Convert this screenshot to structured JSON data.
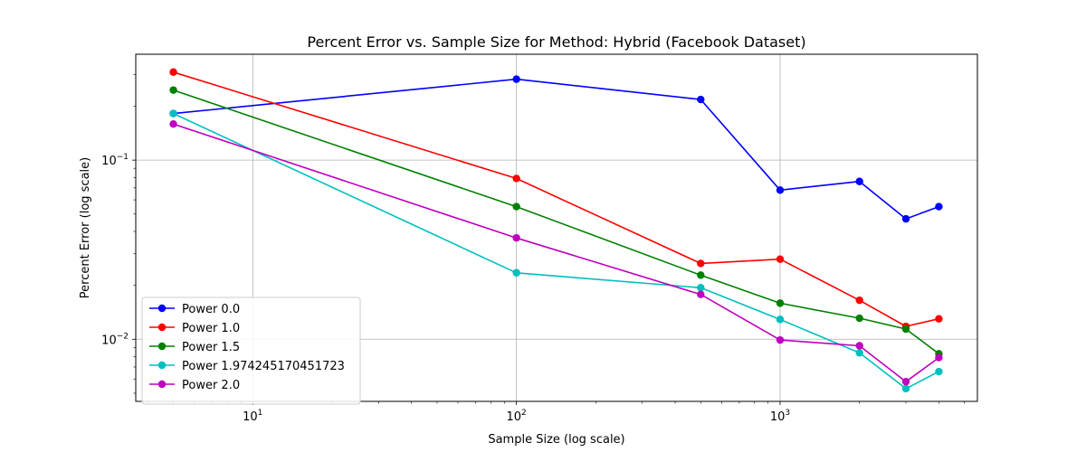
{
  "chart_data": {
    "type": "line",
    "title": "Percent Error vs. Sample Size for Method: Hybrid (Facebook Dataset)",
    "xlabel": "Sample Size (log scale)",
    "ylabel": "Percent Error (log scale)",
    "xscale": "log",
    "yscale": "log",
    "xlim": [
      3.6,
      5600
    ],
    "ylim": [
      0.0045,
      0.39
    ],
    "grid": true,
    "legend_position": "lower-left",
    "x_ticks": [
      {
        "value": 10,
        "base": "10",
        "exp": "1"
      },
      {
        "value": 100,
        "base": "10",
        "exp": "2"
      },
      {
        "value": 1000,
        "base": "10",
        "exp": "3"
      }
    ],
    "y_ticks": [
      {
        "value": 0.01,
        "base": "10",
        "exp": "−2"
      },
      {
        "value": 0.1,
        "base": "10",
        "exp": "−1"
      }
    ],
    "x": [
      5,
      100,
      500,
      1000,
      2000,
      3000,
      4000
    ],
    "series": [
      {
        "name": "Power 0.0",
        "color": "#0000ff",
        "values": [
          0.182,
          0.283,
          0.218,
          0.068,
          0.076,
          0.047,
          0.055
        ]
      },
      {
        "name": "Power 1.0",
        "color": "#ff0000",
        "values": [
          0.31,
          0.079,
          0.0265,
          0.028,
          0.0165,
          0.0118,
          0.013
        ]
      },
      {
        "name": "Power 1.5",
        "color": "#008000",
        "values": [
          0.246,
          0.055,
          0.0228,
          0.0159,
          0.0131,
          0.0114,
          0.0083
        ]
      },
      {
        "name": "Power 1.974245170451723",
        "color": "#00bfbf",
        "values": [
          0.182,
          0.0235,
          0.0194,
          0.0129,
          0.0084,
          0.0053,
          0.0066
        ]
      },
      {
        "name": "Power 2.0",
        "color": "#bf00bf",
        "values": [
          0.159,
          0.0368,
          0.0178,
          0.0099,
          0.0092,
          0.0058,
          0.0079
        ]
      }
    ]
  }
}
